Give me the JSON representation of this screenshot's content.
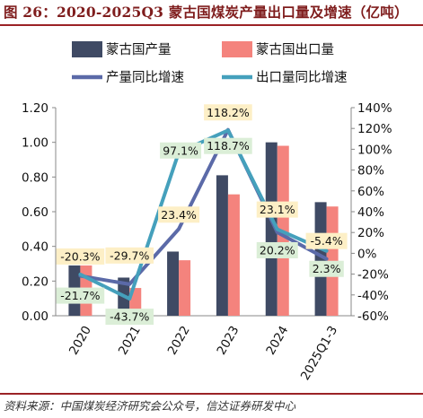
{
  "header": {
    "title": "图 26：2020-2025Q3 蒙古国煤炭产量出口量及增速（亿吨）"
  },
  "footer": {
    "source": "资料来源：中国煤炭经济研究会公众号，信达证券研发中心"
  },
  "colors": {
    "production_bar": "#3f4a64",
    "export_bar": "#f4837d",
    "production_growth_line": "#5b6aa8",
    "export_growth_line": "#45a0bc",
    "label_box_yellow": "#fdefc6",
    "label_box_green": "#dbeed7",
    "accent_rule": "#9b2226"
  },
  "chart_data": {
    "type": "bar",
    "categories": [
      "2020",
      "2021",
      "2022",
      "2023",
      "2024",
      "2025Q1-3"
    ],
    "series": [
      {
        "name": "蒙古国产量",
        "kind": "bar",
        "axis": "left",
        "values": [
          0.29,
          0.22,
          0.37,
          0.81,
          1.0,
          0.655
        ]
      },
      {
        "name": "蒙古国出口量",
        "kind": "bar",
        "axis": "left",
        "values": [
          0.29,
          0.16,
          0.32,
          0.7,
          0.98,
          0.63
        ]
      },
      {
        "name": "产量同比增速",
        "kind": "line",
        "axis": "right",
        "values": [
          -21.7,
          -29.7,
          23.4,
          118.7,
          20.2,
          -5.4
        ],
        "labels": [
          "-21.7%",
          "-29.7%",
          "23.4%",
          "118.7%",
          "20.2%",
          "-5.4%"
        ]
      },
      {
        "name": "出口量同比增速",
        "kind": "line",
        "axis": "right",
        "values": [
          -20.3,
          -43.7,
          97.1,
          118.2,
          23.1,
          2.3
        ],
        "labels": [
          "-20.3%",
          "-43.7%",
          "97.1%",
          "118.2%",
          "23.1%",
          "2.3%"
        ]
      }
    ],
    "y_left": {
      "range": [
        0,
        1.2
      ],
      "ticks": [
        "0.00",
        "0.20",
        "0.40",
        "0.60",
        "0.80",
        "1.00",
        "1.20"
      ]
    },
    "y_right": {
      "range": [
        -60,
        140
      ],
      "ticks": [
        "-60%",
        "-40%",
        "-20%",
        "0%",
        "20%",
        "40%",
        "60%",
        "80%",
        "100%",
        "120%",
        "140%"
      ]
    },
    "grid": false,
    "legend": "top",
    "title": "",
    "xlabel": "",
    "ylabel": ""
  }
}
